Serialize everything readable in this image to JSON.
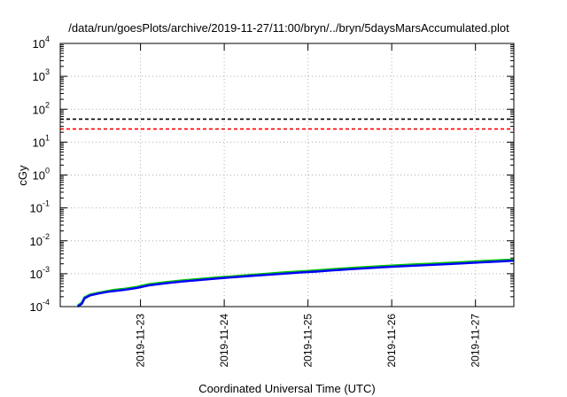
{
  "chart_data": {
    "type": "line",
    "title": "/data/run/goesPlots/archive/2019-11-27/11:00/bryn/../bryn/5daysMarsAccumulated.plot",
    "xlabel": "Coordinated Universal Time (UTC)",
    "ylabel": "cGy",
    "y_scale": "log",
    "ylim": [
      0.0001,
      10000
    ],
    "xlim": [
      "2019-11-22T01:00",
      "2019-11-27T11:00"
    ],
    "grid": true,
    "y_ticks": [
      {
        "base": "10",
        "exp": "-4",
        "value": 0.0001
      },
      {
        "base": "10",
        "exp": "-3",
        "value": 0.001
      },
      {
        "base": "10",
        "exp": "-2",
        "value": 0.01
      },
      {
        "base": "10",
        "exp": "-1",
        "value": 0.1
      },
      {
        "base": "10",
        "exp": "0",
        "value": 1
      },
      {
        "base": "10",
        "exp": "1",
        "value": 10
      },
      {
        "base": "10",
        "exp": "2",
        "value": 100
      },
      {
        "base": "10",
        "exp": "3",
        "value": 1000
      },
      {
        "base": "10",
        "exp": "4",
        "value": 10000
      }
    ],
    "x_ticks": [
      {
        "label": "2019-11-23",
        "value": "2019-11-23T00:00"
      },
      {
        "label": "2019-11-24",
        "value": "2019-11-24T00:00"
      },
      {
        "label": "2019-11-25",
        "value": "2019-11-25T00:00"
      },
      {
        "label": "2019-11-26",
        "value": "2019-11-26T00:00"
      },
      {
        "label": "2019-11-27",
        "value": "2019-11-27T00:00"
      }
    ],
    "reference_lines": [
      {
        "y": 50,
        "color": "#000000",
        "style": "dashed"
      },
      {
        "y": 25,
        "color": "#ff0000",
        "style": "dashed"
      }
    ],
    "series": [
      {
        "color": "#00c000",
        "x": [
          "2019-11-22T06:00",
          "2019-11-22T07:12",
          "2019-11-22T08:00",
          "2019-11-22T09:36",
          "2019-11-22T12:00",
          "2019-11-22T14:24",
          "2019-11-22T16:48",
          "2019-11-22T19:12",
          "2019-11-22T21:36",
          "2019-11-22T23:00",
          "2019-11-23T02:24",
          "2019-11-23T07:12",
          "2019-11-23T12:00",
          "2019-11-23T16:48",
          "2019-11-23T21:36",
          "2019-11-24T02:24",
          "2019-11-24T07:12",
          "2019-11-24T12:00",
          "2019-11-24T16:48",
          "2019-11-24T21:36",
          "2019-11-25T02:24",
          "2019-11-25T07:12",
          "2019-11-25T12:00",
          "2019-11-25T16:48",
          "2019-11-25T21:36",
          "2019-11-26T02:24",
          "2019-11-26T07:12",
          "2019-11-26T12:00",
          "2019-11-26T16:48",
          "2019-11-26T21:36",
          "2019-11-27T02:24",
          "2019-11-27T07:12",
          "2019-11-27T11:00"
        ],
        "values": [
          0.000105,
          0.00013,
          0.00019,
          0.00023,
          0.00026,
          0.00029,
          0.00032,
          0.00034,
          0.00037,
          0.00039,
          0.00047,
          0.00054,
          0.00061,
          0.00068,
          0.00075,
          0.00082,
          0.0009,
          0.00098,
          0.00107,
          0.00115,
          0.00124,
          0.00135,
          0.00146,
          0.00157,
          0.00168,
          0.00179,
          0.0019,
          0.002,
          0.00211,
          0.00224,
          0.00239,
          0.00253,
          0.00265
        ]
      },
      {
        "color": "#0000ff",
        "x": [
          "2019-11-22T06:00",
          "2019-11-22T07:12",
          "2019-11-22T08:00",
          "2019-11-22T09:36",
          "2019-11-22T12:00",
          "2019-11-22T14:24",
          "2019-11-22T16:48",
          "2019-11-22T19:12",
          "2019-11-22T21:36",
          "2019-11-22T23:00",
          "2019-11-23T02:24",
          "2019-11-23T07:12",
          "2019-11-23T12:00",
          "2019-11-23T16:48",
          "2019-11-23T21:36",
          "2019-11-24T02:24",
          "2019-11-24T07:12",
          "2019-11-24T12:00",
          "2019-11-24T16:48",
          "2019-11-24T21:36",
          "2019-11-25T02:24",
          "2019-11-25T07:12",
          "2019-11-25T12:00",
          "2019-11-25T16:48",
          "2019-11-25T21:36",
          "2019-11-26T02:24",
          "2019-11-26T07:12",
          "2019-11-26T12:00",
          "2019-11-26T16:48",
          "2019-11-26T21:36",
          "2019-11-27T02:24",
          "2019-11-27T07:12",
          "2019-11-27T11:00"
        ],
        "values": [
          0.0001,
          0.000122,
          0.00018,
          0.00022,
          0.00025,
          0.00028,
          0.0003,
          0.00032,
          0.00035,
          0.00037,
          0.00044,
          0.00051,
          0.00058,
          0.00064,
          0.00071,
          0.00078,
          0.00085,
          0.00092,
          0.001,
          0.00108,
          0.00116,
          0.00126,
          0.00137,
          0.00147,
          0.00157,
          0.00167,
          0.00177,
          0.00187,
          0.00197,
          0.0021,
          0.00224,
          0.00237,
          0.00248
        ]
      }
    ]
  }
}
